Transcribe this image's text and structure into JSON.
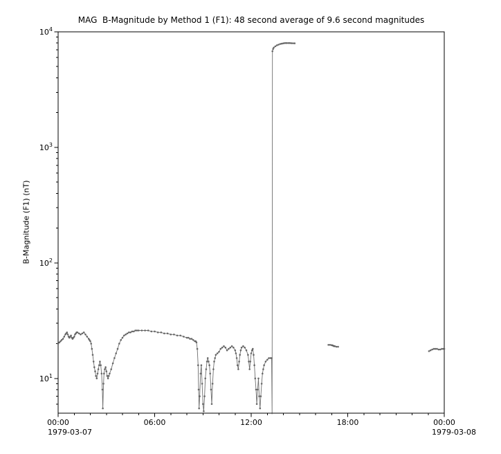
{
  "figure": {
    "title": "MAG  B-Magnitude by Method 1 (F1): 48 second average of 9.6 second magnitudes",
    "ylabel": "B-Magnitude (F1) (nT)",
    "x_date_left": "1979-03-07",
    "x_date_right": "1979-03-08"
  },
  "chart_data": {
    "type": "line",
    "title": "MAG  B-Magnitude by Method 1 (F1): 48 second average of 9.6 second magnitudes",
    "xlabel": "",
    "ylabel": "B-Magnitude (F1) (nT)",
    "x_unit": "hours since 1979-03-07 00:00",
    "xlim": [
      0,
      24
    ],
    "ylim": [
      5,
      10000
    ],
    "yscale": "log",
    "grid": false,
    "x_ticks": [
      0,
      6,
      12,
      18,
      24
    ],
    "x_ticklabels": [
      "00:00",
      "06:00",
      "12:00",
      "18:00",
      "00:00"
    ],
    "y_ticks": [
      10,
      100,
      1000,
      10000
    ],
    "y_ticklabels": [
      "10^1",
      "10^2",
      "10^3",
      "10^4"
    ],
    "marker_color": "#5e5e5e",
    "segments": [
      [
        [
          0.0,
          20.0
        ],
        [
          0.08,
          20.5
        ],
        [
          0.15,
          21.0
        ],
        [
          0.22,
          21.5
        ],
        [
          0.3,
          22.0
        ],
        [
          0.38,
          23.0
        ],
        [
          0.45,
          24.0
        ],
        [
          0.5,
          24.5
        ],
        [
          0.55,
          25.0
        ],
        [
          0.6,
          24.0
        ],
        [
          0.65,
          23.0
        ],
        [
          0.7,
          22.5
        ],
        [
          0.75,
          23.0
        ],
        [
          0.8,
          23.5
        ],
        [
          0.85,
          22.5
        ],
        [
          0.9,
          22.0
        ],
        [
          0.95,
          22.5
        ],
        [
          1.0,
          23.0
        ],
        [
          1.05,
          24.0
        ],
        [
          1.1,
          24.5
        ],
        [
          1.15,
          25.0
        ],
        [
          1.2,
          25.0
        ],
        [
          1.3,
          24.5
        ],
        [
          1.4,
          24.0
        ],
        [
          1.5,
          24.5
        ],
        [
          1.6,
          25.0
        ],
        [
          1.7,
          24.0
        ],
        [
          1.8,
          23.0
        ],
        [
          1.9,
          22.0
        ],
        [
          1.95,
          21.5
        ],
        [
          2.0,
          21.0
        ],
        [
          2.05,
          20.0
        ],
        [
          2.1,
          18.0
        ],
        [
          2.15,
          16.0
        ],
        [
          2.2,
          14.0
        ],
        [
          2.25,
          12.5
        ],
        [
          2.3,
          11.5
        ],
        [
          2.35,
          10.5
        ],
        [
          2.4,
          10.0
        ],
        [
          2.45,
          11.0
        ],
        [
          2.5,
          12.0
        ],
        [
          2.55,
          13.0
        ],
        [
          2.6,
          14.0
        ],
        [
          2.65,
          13.0
        ],
        [
          2.7,
          11.0
        ],
        [
          2.75,
          8.0
        ],
        [
          2.78,
          5.5
        ],
        [
          2.82,
          9.0
        ],
        [
          2.85,
          11.0
        ],
        [
          2.9,
          12.0
        ],
        [
          2.95,
          12.5
        ],
        [
          3.0,
          11.5
        ],
        [
          3.05,
          10.5
        ],
        [
          3.1,
          10.0
        ],
        [
          3.15,
          10.5
        ],
        [
          3.2,
          11.0
        ],
        [
          3.3,
          12.0
        ],
        [
          3.4,
          13.5
        ],
        [
          3.5,
          15.0
        ],
        [
          3.6,
          16.5
        ],
        [
          3.7,
          18.0
        ],
        [
          3.8,
          20.0
        ],
        [
          3.9,
          21.5
        ],
        [
          4.0,
          22.5
        ],
        [
          4.1,
          23.5
        ],
        [
          4.2,
          24.0
        ],
        [
          4.3,
          24.5
        ],
        [
          4.4,
          25.0
        ],
        [
          4.5,
          25.0
        ],
        [
          4.6,
          25.5
        ],
        [
          4.7,
          25.5
        ],
        [
          4.8,
          26.0
        ],
        [
          4.9,
          26.0
        ],
        [
          5.0,
          26.0
        ],
        [
          5.2,
          26.0
        ],
        [
          5.4,
          26.0
        ],
        [
          5.6,
          26.0
        ],
        [
          5.8,
          25.5
        ],
        [
          6.0,
          25.5
        ],
        [
          6.2,
          25.0
        ],
        [
          6.4,
          25.0
        ],
        [
          6.6,
          24.5
        ],
        [
          6.8,
          24.5
        ],
        [
          7.0,
          24.0
        ],
        [
          7.2,
          24.0
        ],
        [
          7.4,
          23.5
        ],
        [
          7.6,
          23.5
        ],
        [
          7.8,
          23.0
        ],
        [
          8.0,
          22.5
        ],
        [
          8.1,
          22.5
        ],
        [
          8.2,
          22.0
        ],
        [
          8.3,
          22.0
        ],
        [
          8.4,
          21.5
        ],
        [
          8.5,
          21.0
        ],
        [
          8.55,
          21.0
        ],
        [
          8.6,
          20.5
        ],
        [
          8.65,
          18.0
        ],
        [
          8.7,
          13.0
        ],
        [
          8.73,
          8.0
        ],
        [
          8.76,
          5.5
        ],
        [
          8.8,
          7.0
        ],
        [
          8.85,
          11.0
        ],
        [
          8.9,
          13.0
        ],
        [
          8.95,
          9.0
        ],
        [
          9.0,
          6.0
        ],
        [
          9.05,
          5.2
        ],
        [
          9.1,
          7.0
        ],
        [
          9.15,
          10.0
        ],
        [
          9.2,
          12.0
        ],
        [
          9.25,
          14.0
        ],
        [
          9.3,
          15.0
        ],
        [
          9.35,
          14.0
        ],
        [
          9.4,
          13.0
        ],
        [
          9.45,
          11.0
        ],
        [
          9.5,
          8.0
        ],
        [
          9.55,
          6.0
        ],
        [
          9.6,
          9.0
        ],
        [
          9.65,
          12.0
        ],
        [
          9.7,
          14.0
        ],
        [
          9.75,
          15.0
        ],
        [
          9.8,
          16.0
        ],
        [
          9.9,
          16.5
        ],
        [
          10.0,
          17.0
        ],
        [
          10.1,
          18.0
        ],
        [
          10.2,
          18.5
        ],
        [
          10.3,
          19.0
        ],
        [
          10.4,
          18.5
        ],
        [
          10.5,
          17.5
        ],
        [
          10.6,
          18.0
        ],
        [
          10.7,
          18.5
        ],
        [
          10.8,
          19.0
        ],
        [
          10.9,
          18.5
        ],
        [
          11.0,
          17.5
        ],
        [
          11.05,
          16.5
        ],
        [
          11.1,
          15.0
        ],
        [
          11.15,
          13.0
        ],
        [
          11.2,
          12.0
        ],
        [
          11.25,
          14.0
        ],
        [
          11.3,
          16.0
        ],
        [
          11.35,
          17.5
        ],
        [
          11.4,
          18.5
        ],
        [
          11.5,
          19.0
        ],
        [
          11.6,
          18.5
        ],
        [
          11.7,
          17.5
        ],
        [
          11.8,
          16.0
        ],
        [
          11.85,
          14.0
        ],
        [
          11.9,
          12.0
        ],
        [
          11.95,
          14.0
        ],
        [
          12.0,
          16.5
        ],
        [
          12.05,
          17.5
        ],
        [
          12.1,
          18.0
        ],
        [
          12.15,
          16.0
        ],
        [
          12.2,
          13.0
        ],
        [
          12.25,
          10.0
        ],
        [
          12.3,
          8.0
        ],
        [
          12.35,
          6.0
        ],
        [
          12.4,
          8.0
        ],
        [
          12.45,
          10.0
        ],
        [
          12.5,
          7.0
        ],
        [
          12.55,
          5.5
        ],
        [
          12.6,
          7.0
        ],
        [
          12.65,
          9.0
        ],
        [
          12.7,
          11.0
        ],
        [
          12.75,
          12.0
        ],
        [
          12.8,
          13.0
        ],
        [
          12.9,
          14.0
        ],
        [
          13.0,
          14.5
        ],
        [
          13.1,
          15.0
        ],
        [
          13.2,
          15.0
        ],
        [
          13.27,
          15.0
        ],
        [
          13.3,
          5.0
        ],
        [
          13.32,
          6800
        ],
        [
          13.36,
          7100
        ],
        [
          13.4,
          7300
        ],
        [
          13.5,
          7500
        ],
        [
          13.6,
          7650
        ],
        [
          13.7,
          7750
        ],
        [
          13.8,
          7850
        ],
        [
          13.9,
          7900
        ],
        [
          14.0,
          7950
        ],
        [
          14.1,
          8000
        ],
        [
          14.2,
          8000
        ],
        [
          14.3,
          8000
        ],
        [
          14.4,
          8000
        ],
        [
          14.5,
          7980
        ],
        [
          14.6,
          7960
        ],
        [
          14.7,
          7950
        ]
      ],
      [
        [
          16.8,
          19.5
        ],
        [
          16.9,
          19.5
        ],
        [
          17.0,
          19.4
        ],
        [
          17.05,
          19.3
        ],
        [
          17.1,
          19.2
        ],
        [
          17.15,
          19.0
        ],
        [
          17.2,
          19.0
        ],
        [
          17.3,
          18.8
        ],
        [
          17.4,
          18.8
        ]
      ],
      [
        [
          23.05,
          17.2
        ],
        [
          23.15,
          17.5
        ],
        [
          23.25,
          17.8
        ],
        [
          23.35,
          18.0
        ],
        [
          23.45,
          18.0
        ],
        [
          23.55,
          18.0
        ],
        [
          23.65,
          17.8
        ],
        [
          23.75,
          17.8
        ],
        [
          23.85,
          18.0
        ],
        [
          23.95,
          18.0
        ],
        [
          24.0,
          18.0
        ]
      ]
    ]
  }
}
